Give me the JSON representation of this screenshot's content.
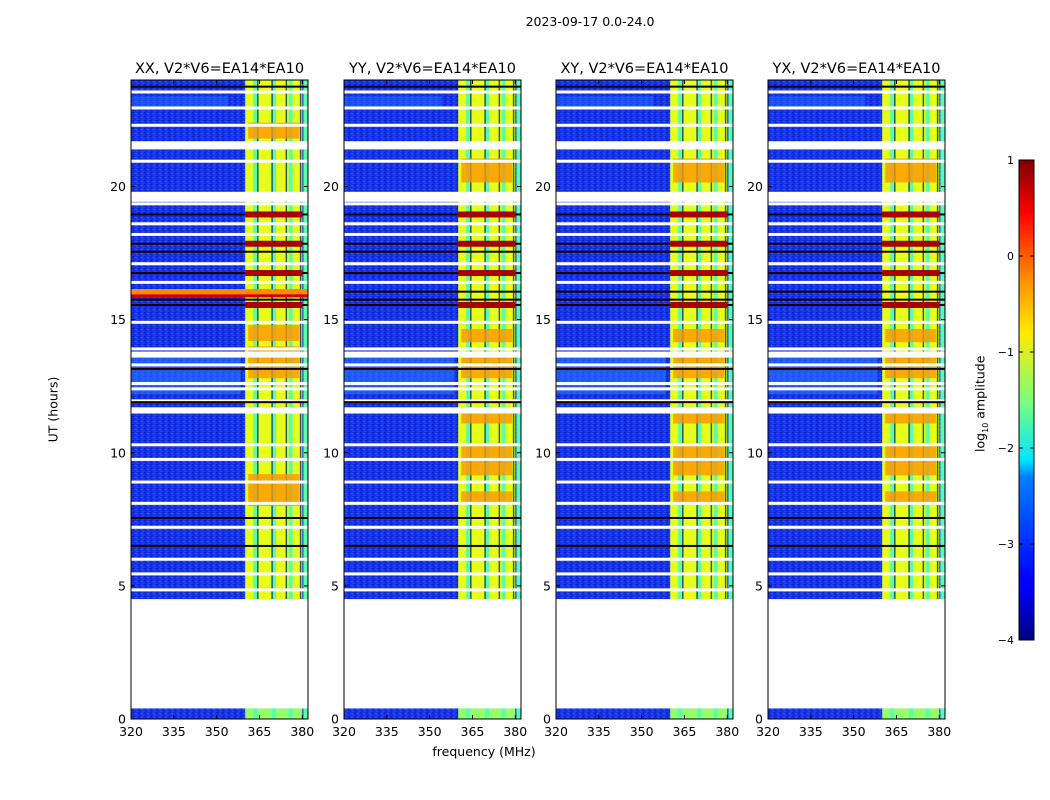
{
  "figure": {
    "suptitle": "2023-09-17 0.0-24.0",
    "ylabel": "UT (hours)",
    "xlabel": "frequency (MHz)"
  },
  "chart_data": {
    "type": "heatmap",
    "x": {
      "label": "frequency (MHz)",
      "range": [
        320,
        382
      ],
      "ticks": [
        320,
        335,
        350,
        365,
        380
      ]
    },
    "y": {
      "label": "UT (hours)",
      "range": [
        0,
        24
      ],
      "ticks": [
        0,
        5,
        10,
        15,
        20
      ]
    },
    "colorbar": {
      "label": "log10 amplitude",
      "label_base": "log",
      "label_sub": "10",
      "label_rest": " amplitude",
      "range": [
        -4,
        1
      ],
      "ticks": [
        1,
        0,
        -1,
        -2,
        -3,
        -4
      ],
      "tick_labels": [
        "1",
        "0",
        "−1",
        "−2",
        "−3",
        "−4"
      ],
      "colormap": "jet"
    },
    "panels": [
      {
        "title": "XX, V2*V6=EA14*EA10",
        "polarization": "XX"
      },
      {
        "title": "YY, V2*V6=EA14*EA10",
        "polarization": "YY"
      },
      {
        "title": "XY, V2*V6=EA14*EA10",
        "polarization": "XY"
      },
      {
        "title": "YX, V2*V6=EA14*EA10",
        "polarization": "YX"
      }
    ],
    "data_gaps_ut_hours": [
      [
        0.4,
        4.5
      ]
    ],
    "signal_band_mhz": [
      360,
      380
    ],
    "approx_background_log10": -3.2,
    "approx_band_log10": -1.0,
    "approx_strong_rfi_log10": 0.5
  }
}
